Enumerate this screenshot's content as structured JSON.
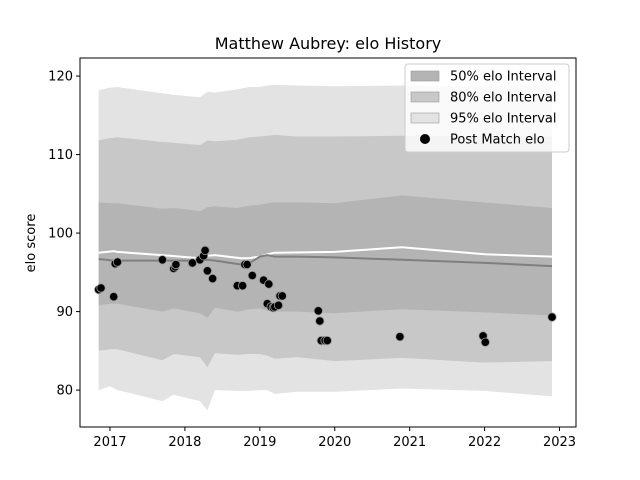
{
  "chart_data": {
    "type": "line",
    "title": "Matthew Aubrey: elo History",
    "xlabel": "",
    "ylabel": "elo score",
    "xlim": [
      2016.6,
      2023.22
    ],
    "ylim": [
      75.3,
      122.3
    ],
    "x_ticks": [
      2017,
      2018,
      2019,
      2020,
      2021,
      2022,
      2023
    ],
    "x_tick_labels": [
      "2017",
      "2018",
      "2019",
      "2020",
      "2021",
      "2022",
      "2023"
    ],
    "y_ticks": [
      80,
      90,
      100,
      110,
      120
    ],
    "y_tick_labels": [
      "80",
      "90",
      "100",
      "110",
      "120"
    ],
    "grid": false,
    "legend_position": "top-right",
    "legend": [
      {
        "label": "50% elo Interval",
        "kind": "band",
        "color": "#b4b4b4"
      },
      {
        "label": "80% elo Interval",
        "kind": "band",
        "color": "#c8c8c8"
      },
      {
        "label": "95% elo Interval",
        "kind": "band",
        "color": "#e3e3e3"
      },
      {
        "label": "Post Match elo",
        "kind": "marker",
        "color": "#000000"
      }
    ],
    "bands": {
      "x": [
        2016.85,
        2017.0,
        2017.1,
        2017.7,
        2017.85,
        2018.2,
        2018.3,
        2018.4,
        2018.7,
        2018.85,
        2019.0,
        2019.1,
        2019.2,
        2019.5,
        2020.0,
        2020.9,
        2022.0,
        2022.9
      ],
      "p95_high": [
        118.2,
        118.5,
        118.6,
        117.8,
        117.6,
        117.3,
        118.0,
        117.9,
        118.3,
        118.6,
        118.6,
        118.8,
        118.9,
        118.8,
        118.7,
        118.8,
        118.7,
        118.8
      ],
      "p95_low": [
        80.0,
        80.5,
        80.0,
        78.6,
        79.4,
        78.6,
        77.4,
        80.0,
        79.9,
        79.9,
        80.0,
        80.0,
        79.5,
        79.8,
        79.8,
        80.2,
        79.9,
        79.2
      ],
      "p80_high": [
        111.8,
        112.1,
        112.2,
        111.6,
        111.5,
        111.2,
        111.8,
        111.7,
        111.9,
        112.2,
        112.3,
        112.4,
        112.5,
        112.3,
        112.3,
        112.4,
        112.3,
        112.3
      ],
      "p80_low": [
        85.0,
        85.2,
        85.2,
        83.8,
        84.6,
        84.2,
        82.9,
        84.7,
        84.5,
        84.6,
        84.6,
        84.4,
        84.0,
        84.2,
        83.7,
        84.1,
        83.5,
        83.7
      ],
      "p50_high": [
        103.9,
        103.8,
        103.8,
        103.1,
        103.2,
        102.8,
        103.3,
        103.4,
        103.2,
        103.5,
        103.6,
        103.8,
        103.9,
        103.9,
        103.8,
        104.8,
        103.9,
        103.2
      ],
      "p50_low": [
        90.8,
        91.0,
        91.0,
        90.0,
        90.4,
        89.8,
        89.2,
        90.5,
        90.0,
        90.3,
        90.4,
        90.1,
        90.0,
        90.0,
        89.8,
        90.3,
        89.9,
        89.5
      ]
    },
    "series": [
      {
        "type": "line",
        "color": "#ffffff",
        "x": [
          2016.85,
          2017.05,
          2017.1,
          2017.8,
          2018.2,
          2018.3,
          2018.4,
          2018.75,
          2018.85,
          2019.0,
          2019.1,
          2019.2,
          2020.0,
          2020.9,
          2022.0,
          2022.9
        ],
        "y": [
          97.5,
          97.7,
          97.6,
          97.1,
          96.8,
          97.1,
          97.2,
          96.8,
          96.8,
          97.0,
          97.3,
          97.5,
          97.6,
          98.2,
          97.3,
          97.0
        ]
      },
      {
        "type": "line",
        "color": "#7f7f7f",
        "x": [
          2016.85,
          2017.05,
          2017.1,
          2017.8,
          2018.2,
          2018.3,
          2018.4,
          2018.75,
          2018.85,
          2019.0,
          2019.1,
          2019.2,
          2019.5,
          2020.0,
          2020.9,
          2022.0,
          2022.9
        ],
        "y": [
          96.7,
          96.5,
          96.5,
          96.5,
          96.5,
          96.6,
          96.5,
          96.0,
          96.1,
          97.0,
          97.2,
          97.0,
          97.0,
          96.9,
          96.6,
          96.2,
          95.8
        ]
      },
      {
        "name": "Post Match elo",
        "type": "scatter",
        "color": "#000000",
        "x": [
          2016.85,
          2016.88,
          2017.05,
          2017.07,
          2017.1,
          2017.7,
          2017.85,
          2017.87,
          2017.88,
          2018.1,
          2018.2,
          2018.25,
          2018.27,
          2018.3,
          2018.37,
          2018.7,
          2018.77,
          2018.8,
          2018.83,
          2018.9,
          2019.05,
          2019.1,
          2019.12,
          2019.15,
          2019.18,
          2019.2,
          2019.25,
          2019.27,
          2019.3,
          2019.78,
          2019.8,
          2019.82,
          2019.87,
          2019.9,
          2020.87,
          2021.98,
          2022.01,
          2022.9
        ],
        "y": [
          92.8,
          93.0,
          91.9,
          96.1,
          96.3,
          96.6,
          95.5,
          95.7,
          96.0,
          96.2,
          96.6,
          97.1,
          97.8,
          95.2,
          94.2,
          93.3,
          93.3,
          96.0,
          96.0,
          94.6,
          94.0,
          91.0,
          93.5,
          90.6,
          90.5,
          90.6,
          90.8,
          92.0,
          92.0,
          90.1,
          88.8,
          86.3,
          86.3,
          86.3,
          86.8,
          86.9,
          86.1,
          89.3
        ]
      }
    ]
  }
}
